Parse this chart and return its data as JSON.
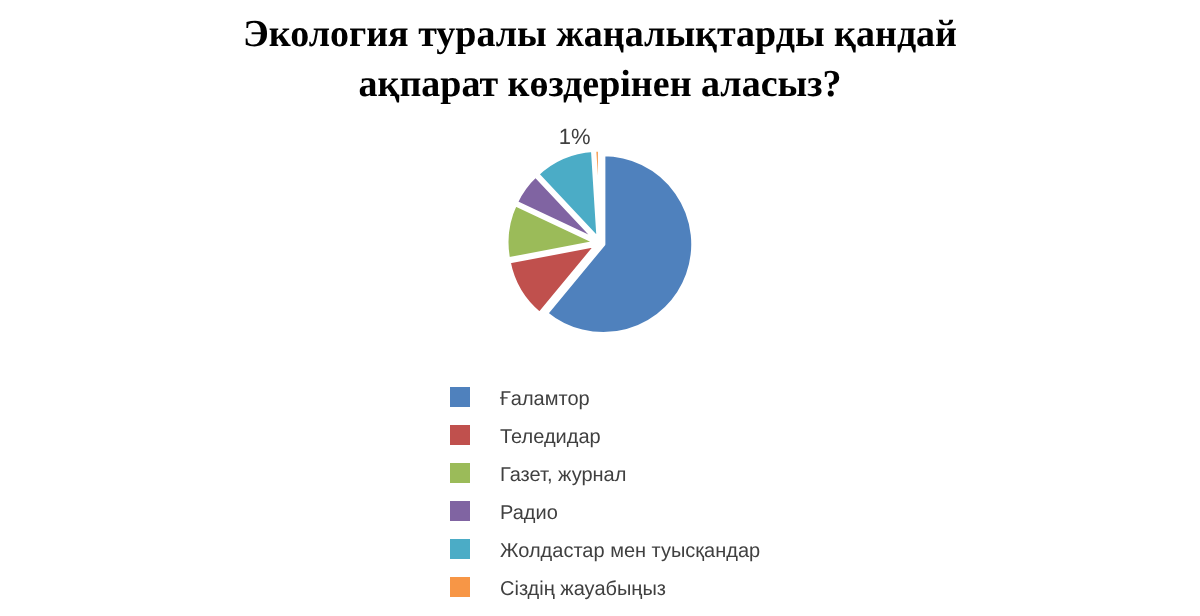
{
  "chart_data": {
    "type": "pie",
    "title": "Экология туралы жаңалықтарды қандай ақпарат көздерінен аласыз?",
    "categories": [
      "Ғаламтор",
      "Теледидар",
      "Газет, журнал",
      "Радио",
      "Жолдастар мен туысқандар",
      "Сіздің жауабыңыз"
    ],
    "values": [
      61,
      11,
      10,
      6,
      11,
      1
    ],
    "colors": [
      "#4f81bd",
      "#c0504d",
      "#9bbb59",
      "#8064a2",
      "#4bacc6",
      "#f79646"
    ],
    "value_labels": [
      null,
      null,
      null,
      null,
      null,
      "1%"
    ],
    "legend": "bottom"
  }
}
